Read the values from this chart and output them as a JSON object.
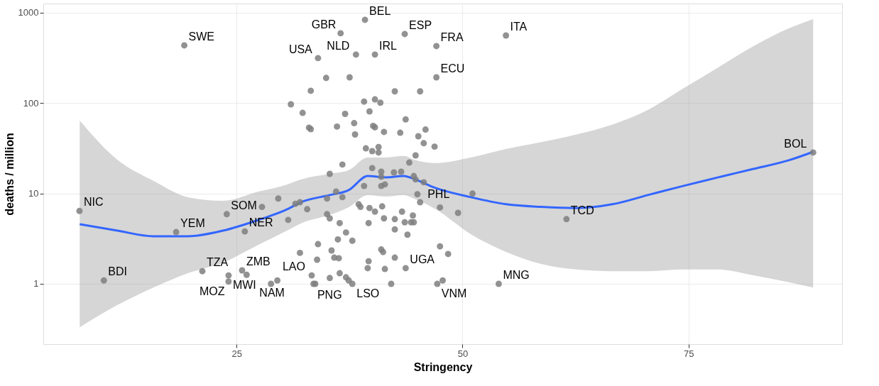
{
  "chart_data": {
    "type": "scatter",
    "xlabel": "Stringency",
    "ylabel": "deaths / million",
    "xlim": [
      3.6,
      92
    ],
    "ylim": [
      0.215,
      1265
    ],
    "xticks": [
      25,
      50,
      75
    ],
    "yticks": [
      1,
      10,
      100,
      1000
    ],
    "log": true,
    "grid": true,
    "series": [
      {
        "type": "scatter",
        "color": "#7f7f7f",
        "x": [
          19.2,
          36.5,
          39.2,
          43.6,
          54.8,
          38.2,
          40.3,
          34.0,
          47.1,
          47.1,
          34.9,
          37.5,
          33.2,
          42.5,
          45.3,
          31.0,
          32.3,
          33.0,
          33.2,
          36.1,
          37.0,
          38.0,
          38.1,
          39.1,
          40.3,
          40.9,
          39.7,
          40.1,
          40.3,
          41.3,
          43.1,
          43.7,
          45.1,
          45.9,
          45.7,
          46.9,
          39.3,
          40.0,
          40.7,
          40.7,
          36.7,
          44.8,
          44.1,
          35.3,
          40.0,
          41.0,
          41.0,
          42.4,
          43.2,
          44.6,
          44.8,
          45.7,
          39.1,
          41.0,
          41.4,
          36.0,
          36.7,
          35.0,
          29.6,
          27.8,
          31.5,
          32.0,
          32.8,
          38.5,
          38.7,
          39.7,
          40.3,
          41.1,
          41.3,
          39.6,
          35.0,
          35.3,
          36.4,
          30.7,
          42.5,
          43.3,
          43.6,
          44.3,
          44.6,
          44.5,
          42.5,
          43.9,
          45.0,
          45.3,
          37.1,
          36.2,
          37.8,
          34.0,
          32.0,
          35.5,
          41.0,
          41.2,
          42.5,
          33.9,
          35.8,
          36.3,
          39.6,
          39.5,
          41.4,
          43.7,
          36.4,
          33.3,
          35.3,
          37.1,
          37.4,
          37.8,
          33.7,
          33.5,
          29.5,
          28.8,
          42.1,
          47.5,
          48.4,
          47.8,
          47.2,
          51.1,
          49.5,
          47.5,
          7.6,
          10.3,
          18.3,
          23.9,
          21.2,
          24.1,
          24.1,
          25.6,
          26.1,
          25.9,
          61.5,
          54.0,
          88.8
        ],
        "values": [
          436,
          593,
          836,
          582,
          561,
          345,
          345,
          315,
          428,
          193,
          190,
          193,
          137,
          135,
          135,
          97,
          78,
          53.5,
          51.5,
          55,
          76,
          60,
          45,
          104,
          110,
          101,
          81,
          56,
          54,
          48,
          47,
          66,
          43,
          51,
          36,
          33,
          31.6,
          29.4,
          32.7,
          28.4,
          20.9,
          26.4,
          22,
          16.5,
          19.1,
          17.4,
          15.3,
          17.1,
          17.4,
          15.6,
          14.3,
          13.3,
          12.1,
          12.1,
          12.6,
          10.5,
          9.1,
          8.8,
          8.8,
          7.1,
          7.7,
          8.0,
          6.7,
          7.6,
          7.1,
          6.9,
          6.3,
          7.2,
          5.3,
          4.7,
          5.9,
          5.3,
          4.7,
          5.1,
          5.2,
          6.3,
          4.8,
          4.8,
          4.8,
          5.7,
          4.0,
          3.5,
          9.8,
          8.0,
          3.7,
          3.1,
          3.0,
          2.75,
          2.2,
          2.34,
          2.4,
          2.25,
          1.95,
          1.85,
          1.95,
          1.92,
          1.78,
          1.49,
          1.46,
          1.49,
          1.31,
          1.24,
          1.16,
          1.18,
          1.09,
          1.0,
          1.0,
          1.0,
          1.09,
          1.0,
          1.0,
          2.6,
          2.14,
          1.09,
          1.0,
          9.97,
          6.1,
          7.0,
          6.4,
          1.09,
          3.74,
          5.9,
          1.38,
          1.24,
          1.06,
          1.41,
          1.26,
          3.8,
          5.2,
          1.0,
          28.4
        ]
      },
      {
        "type": "line",
        "color": "#3366ff",
        "x": [
          7.63,
          11.78,
          15.78,
          19.6,
          23.5,
          27.4,
          30.6,
          32.1,
          35.3,
          37.4,
          39.5,
          41.5,
          43.5,
          44.6,
          47.0,
          50.9,
          54.8,
          58.7,
          62.6,
          66.6,
          70.5,
          74.4,
          78.3,
          82.2,
          86.1,
          88.8
        ],
        "values": [
          4.57,
          3.88,
          3.36,
          3.36,
          3.88,
          5.09,
          6.68,
          8.0,
          9.6,
          10.9,
          15.6,
          15.1,
          15.6,
          14.5,
          11.5,
          9.1,
          7.6,
          7.1,
          6.9,
          7.6,
          9.6,
          12.1,
          15.1,
          18.7,
          23.3,
          28.9
        ],
        "lower": [
          0.33,
          0.58,
          0.91,
          1.31,
          1.72,
          2.7,
          3.9,
          4.66,
          5.8,
          7.05,
          9.6,
          9.25,
          9.6,
          8.8,
          6.7,
          3.55,
          2.26,
          1.66,
          1.44,
          1.38,
          1.38,
          1.44,
          1.44,
          1.24,
          1.04,
          0.91
        ],
        "upper": [
          64,
          23.7,
          13.8,
          9.1,
          8.3,
          10.5,
          12.6,
          14.3,
          16.5,
          18.1,
          25,
          25,
          26,
          23.7,
          21.7,
          25,
          31,
          37,
          45,
          58,
          84,
          145,
          249,
          428,
          673,
          851
        ]
      }
    ],
    "annotations": [
      {
        "text": "SWE",
        "x": 19.2,
        "y": 436
      },
      {
        "text": "GBR",
        "x": 36.5,
        "y": 593
      },
      {
        "text": "BEL",
        "x": 39.2,
        "y": 836
      },
      {
        "text": "ESP",
        "x": 43.6,
        "y": 582
      },
      {
        "text": "ITA",
        "x": 54.8,
        "y": 561
      },
      {
        "text": "NLD",
        "x": 38.2,
        "y": 345
      },
      {
        "text": "IRL",
        "x": 40.3,
        "y": 345
      },
      {
        "text": "USA",
        "x": 34.0,
        "y": 315
      },
      {
        "text": "FRA",
        "x": 47.1,
        "y": 428
      },
      {
        "text": "ECU",
        "x": 47.1,
        "y": 193
      },
      {
        "text": "NIC",
        "x": 7.6,
        "y": 6.4
      },
      {
        "text": "BDI",
        "x": 10.3,
        "y": 1.09
      },
      {
        "text": "YEM",
        "x": 18.3,
        "y": 3.74
      },
      {
        "text": "SOM",
        "x": 23.9,
        "y": 5.9
      },
      {
        "text": "TZA",
        "x": 21.2,
        "y": 1.38
      },
      {
        "text": "MWI",
        "x": 24.1,
        "y": 1.24
      },
      {
        "text": "MOZ",
        "x": 24.1,
        "y": 1.06
      },
      {
        "text": "ZMB",
        "x": 25.6,
        "y": 1.41
      },
      {
        "text": "NAM",
        "x": 26.1,
        "y": 1.26
      },
      {
        "text": "NER",
        "x": 25.9,
        "y": 3.8
      },
      {
        "text": "LAO",
        "x": 33.3,
        "y": 1.24
      },
      {
        "text": "PNG",
        "x": 35.3,
        "y": 1.16
      },
      {
        "text": "LSO",
        "x": 37.8,
        "y": 1.0
      },
      {
        "text": "UGA",
        "x": 43.7,
        "y": 1.49
      },
      {
        "text": "VNM",
        "x": 47.2,
        "y": 1.0
      },
      {
        "text": "PHL",
        "x": 47.5,
        "y": 7.0
      },
      {
        "text": "TCD",
        "x": 61.5,
        "y": 5.2
      },
      {
        "text": "MNG",
        "x": 54.0,
        "y": 1.0
      },
      {
        "text": "BOL",
        "x": 88.8,
        "y": 28.4
      }
    ]
  }
}
